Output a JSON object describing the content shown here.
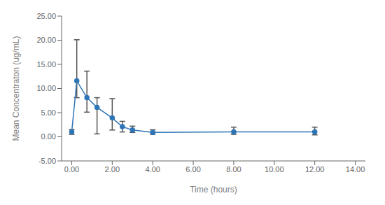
{
  "chart_data": {
    "type": "line",
    "xlabel": "Time (hours)",
    "ylabel": "Mean Concentraton (ug/mL)",
    "x": [
      0.0,
      0.25,
      0.75,
      1.25,
      2.0,
      2.5,
      3.0,
      4.0,
      8.0,
      12.0
    ],
    "values": [
      1.0,
      11.6,
      8.1,
      6.1,
      3.9,
      2.1,
      1.4,
      0.9,
      1.0,
      1.0
    ],
    "error_bars": {
      "lower": [
        0.5,
        3.5,
        3.0,
        5.5,
        2.5,
        1.1,
        0.5,
        0.4,
        0.5,
        0.6
      ],
      "upper": [
        0.5,
        8.5,
        5.5,
        2.0,
        4.0,
        1.1,
        0.8,
        0.55,
        1.0,
        1.0
      ]
    },
    "color": "#2E75B6",
    "marker": "circle",
    "xlim": [
      -0.5,
      14.5
    ],
    "ylim": [
      -5.0,
      25.0
    ],
    "xticks": [
      {
        "value": 0,
        "label": "0.00"
      },
      {
        "value": 2,
        "label": "2.00"
      },
      {
        "value": 4,
        "label": "4.00"
      },
      {
        "value": 6,
        "label": "6.00"
      },
      {
        "value": 8,
        "label": "8.00"
      },
      {
        "value": 10,
        "label": "10.00"
      },
      {
        "value": 12,
        "label": "12.00"
      },
      {
        "value": 14,
        "label": "14.00"
      }
    ],
    "yticks": [
      {
        "value": -5,
        "label": "-5.00"
      },
      {
        "value": 0,
        "label": "0.00"
      },
      {
        "value": 5,
        "label": "5.00"
      },
      {
        "value": 10,
        "label": "10.00"
      },
      {
        "value": 15,
        "label": "15.00"
      },
      {
        "value": 20,
        "label": "20.00"
      },
      {
        "value": 25,
        "label": "25.00"
      }
    ],
    "grid": false
  }
}
